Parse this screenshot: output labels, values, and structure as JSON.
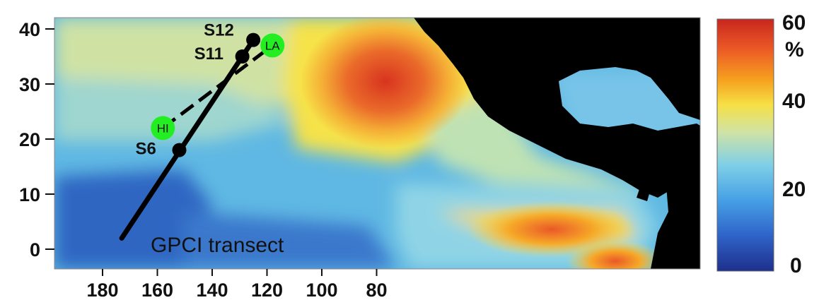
{
  "map": {
    "lon_ticks": [
      "180",
      "160",
      "140",
      "120",
      "100",
      "80"
    ],
    "lat_ticks": [
      "40",
      "30",
      "20",
      "10",
      "0"
    ],
    "transect_label": "GPCI transect",
    "sites": [
      {
        "name": "S12",
        "lon": 125,
        "lat": 38
      },
      {
        "name": "S11",
        "lon": 129,
        "lat": 35
      },
      {
        "name": "S6",
        "lon": 152,
        "lat": 18
      }
    ],
    "transect": {
      "start": {
        "lon": 173,
        "lat": 2
      },
      "end": {
        "lon": 125,
        "lat": 38
      }
    },
    "markers": [
      {
        "name": "HI",
        "lon": 158,
        "lat": 22
      },
      {
        "name": "LA",
        "lon": 118,
        "lat": 37
      }
    ],
    "colors": {
      "land": "#000000",
      "marker": "#22ee22",
      "line": "#000000"
    }
  },
  "colorbar": {
    "labels": [
      "60",
      "%",
      "40",
      "20",
      "0"
    ],
    "stops": [
      "#1e2f8c",
      "#2f63c8",
      "#46a0e6",
      "#7ecfe6",
      "#cfe3a6",
      "#f6e045",
      "#f6a01e",
      "#ec5a26",
      "#c8261e"
    ]
  }
}
